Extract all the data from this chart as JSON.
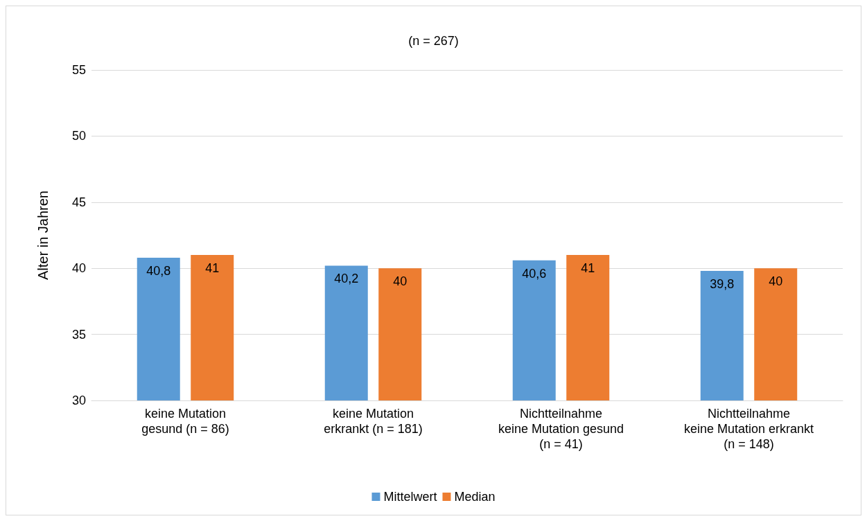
{
  "chart_data": {
    "type": "bar",
    "title": "(n = 267)",
    "ylabel": "Alter in Jahren",
    "categories": [
      "keine Mutation\ngesund (n = 86)",
      "keine Mutation\nerkrankt (n = 181)",
      "Nichtteilnahme\nkeine Mutation gesund\n(n = 41)",
      "Nichtteilnahme\nkeine Mutation erkrankt\n(n = 148)"
    ],
    "series": [
      {
        "name": "Mittelwert",
        "color": "#5b9bd5",
        "values": [
          40.8,
          40.2,
          40.6,
          39.8
        ],
        "value_labels": [
          "40,8",
          "40,2",
          "40,6",
          "39,8"
        ]
      },
      {
        "name": "Median",
        "color": "#ed7d31",
        "values": [
          41,
          40,
          41,
          40
        ],
        "value_labels": [
          "41",
          "40",
          "41",
          "40"
        ]
      }
    ],
    "ylim": [
      30,
      55
    ],
    "yticks": [
      30,
      35,
      40,
      45,
      50,
      55
    ],
    "grid": "y",
    "legend": "bottom"
  }
}
